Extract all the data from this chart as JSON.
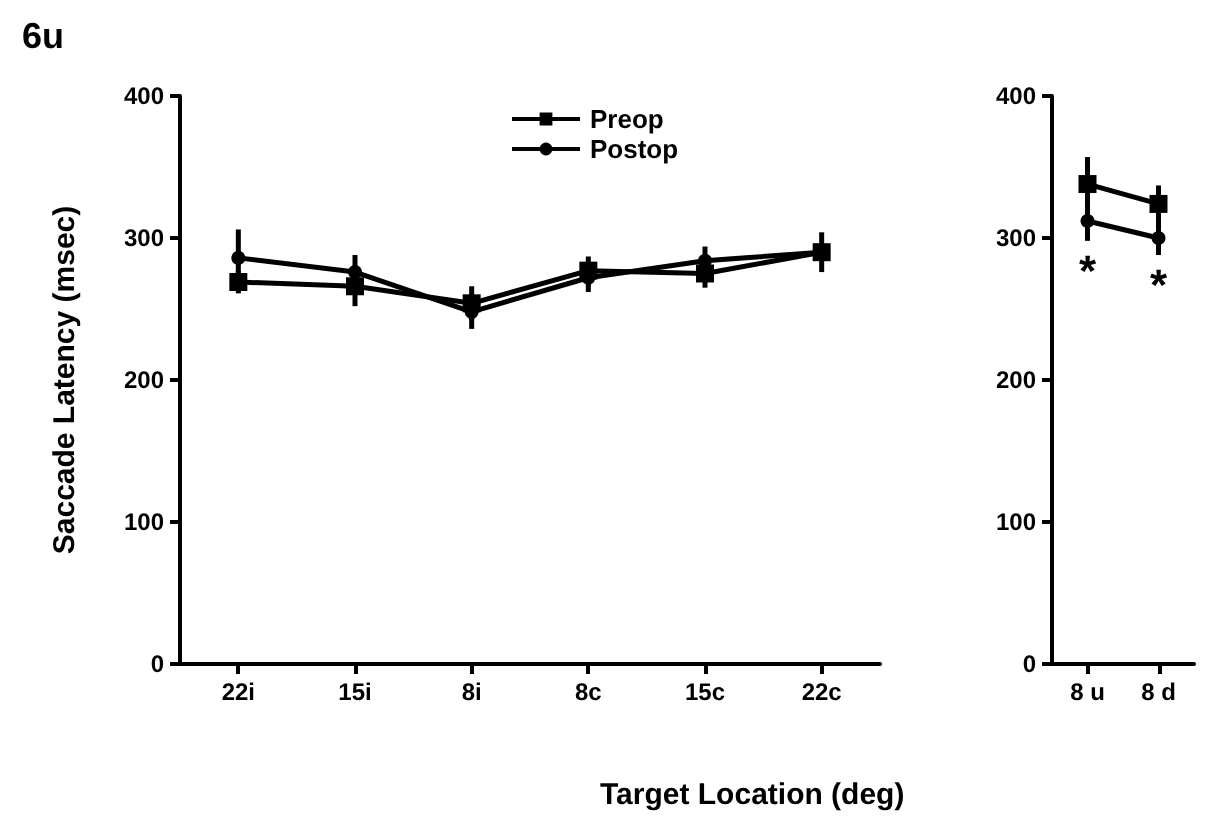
{
  "chart_data": [
    {
      "type": "line",
      "title": "6u",
      "xlabel": "Target Location (deg)",
      "ylabel": "Saccade Latency (msec)",
      "categories": [
        "22i",
        "15i",
        "8i",
        "8c",
        "15c",
        "22c"
      ],
      "series": [
        {
          "name": "Preop",
          "color": "#000000",
          "marker": "square",
          "values": [
            269,
            266,
            254,
            277,
            275,
            290
          ],
          "errors": [
            8,
            14,
            12,
            10,
            10,
            14
          ]
        },
        {
          "name": "Postop",
          "color": "#000000",
          "marker": "circle",
          "values": [
            286,
            276,
            248,
            272,
            284,
            290
          ],
          "errors": [
            20,
            12,
            12,
            10,
            10,
            null
          ]
        }
      ],
      "ylim": [
        0,
        400
      ],
      "yticks": [
        0,
        100,
        200,
        300,
        400
      ],
      "grid": false,
      "legend": "top"
    },
    {
      "type": "line",
      "categories": [
        "8 u",
        "8 d"
      ],
      "series": [
        {
          "color": "#000000",
          "marker": "square",
          "values": [
            338,
            324
          ],
          "errors": [
            19,
            13
          ]
        },
        {
          "color": "#000000",
          "marker": "circle",
          "values": [
            312,
            300
          ],
          "errors": [
            14,
            12
          ]
        }
      ],
      "ylim": [
        0,
        400
      ],
      "yticks": [
        0,
        100,
        200,
        300,
        400
      ],
      "grid": false,
      "annotations": [
        "*",
        "*"
      ]
    }
  ]
}
